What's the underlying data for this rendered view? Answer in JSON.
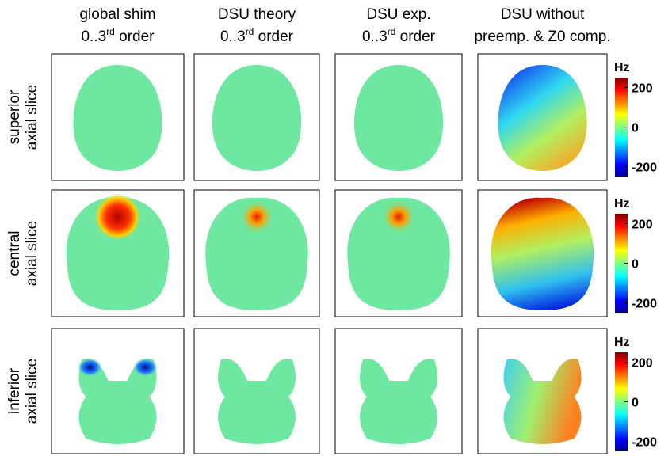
{
  "columns": [
    {
      "line1": "global shim",
      "line2": "0..3",
      "sup": "rd",
      "line2_end": " order"
    },
    {
      "line1": "DSU theory",
      "line2": "0..3",
      "sup": "rd",
      "line2_end": " order"
    },
    {
      "line1": "DSU exp.",
      "line2": "0..3",
      "sup": "rd",
      "line2_end": " order"
    },
    {
      "line1": "DSU without",
      "line2": "preemp. & Z0 comp."
    }
  ],
  "rows": [
    {
      "line1": "superior",
      "line2": "axial slice"
    },
    {
      "line1": "central",
      "line2": "axial slice"
    },
    {
      "line1": "inferior",
      "line2": "axial slice"
    }
  ],
  "colorbar": {
    "unit": "Hz",
    "ticks": [
      200,
      0,
      -200
    ]
  }
}
